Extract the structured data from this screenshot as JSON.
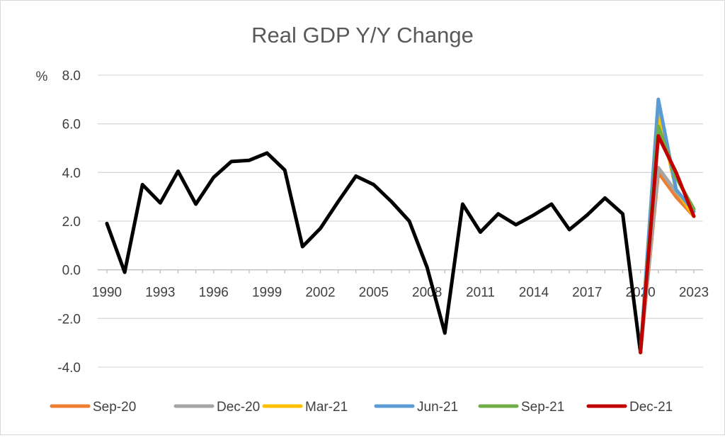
{
  "chart_data": {
    "type": "line",
    "title": "Real GDP Y/Y Change",
    "ylabel": "%",
    "xlabel": "",
    "ylim": [
      -4,
      8
    ],
    "yticks": [
      "-4.0",
      "-2.0",
      "0.0",
      "2.0",
      "4.0",
      "6.0",
      "8.0"
    ],
    "xlim": [
      1990,
      2023
    ],
    "xticks": [
      "1990",
      "1993",
      "1996",
      "1999",
      "2002",
      "2005",
      "2008",
      "2011",
      "2014",
      "2017",
      "2020",
      "2023"
    ],
    "grid": "horizontal",
    "legend_position": "bottom",
    "history": {
      "color": "#000000",
      "x": [
        1990,
        1991,
        1992,
        1993,
        1994,
        1995,
        1996,
        1997,
        1998,
        1999,
        2000,
        2001,
        2002,
        2003,
        2004,
        2005,
        2006,
        2007,
        2008,
        2009,
        2010,
        2011,
        2012,
        2013,
        2014,
        2015,
        2016,
        2017,
        2018,
        2019,
        2020
      ],
      "values": [
        1.9,
        -0.1,
        3.5,
        2.75,
        4.05,
        2.7,
        3.8,
        4.45,
        4.5,
        4.8,
        4.1,
        0.95,
        1.7,
        2.8,
        3.85,
        3.5,
        2.8,
        2.0,
        0.1,
        -2.6,
        2.7,
        1.55,
        2.3,
        1.85,
        2.25,
        2.7,
        1.65,
        2.25,
        2.95,
        2.3,
        -3.4
      ]
    },
    "series": [
      {
        "name": "Sep-20",
        "color": "#ed7d31",
        "x": [
          2020,
          2021,
          2022,
          2023
        ],
        "values": [
          -3.4,
          4.0,
          3.0,
          2.2
        ]
      },
      {
        "name": "Dec-20",
        "color": "#a5a5a5",
        "x": [
          2020,
          2021,
          2022,
          2023
        ],
        "values": [
          -3.4,
          4.2,
          3.2,
          2.4
        ]
      },
      {
        "name": "Mar-21",
        "color": "#ffc000",
        "x": [
          2020,
          2021,
          2022,
          2023
        ],
        "values": [
          -3.4,
          6.5,
          3.3,
          2.2
        ]
      },
      {
        "name": "Jun-21",
        "color": "#5b9bd5",
        "x": [
          2020,
          2021,
          2022,
          2023
        ],
        "values": [
          -3.4,
          7.0,
          3.3,
          2.4
        ]
      },
      {
        "name": "Sep-21",
        "color": "#70ad47",
        "x": [
          2020,
          2021,
          2022,
          2023
        ],
        "values": [
          -3.4,
          5.9,
          3.8,
          2.5
        ]
      },
      {
        "name": "Dec-21",
        "color": "#c00000",
        "x": [
          2020,
          2021,
          2022,
          2023
        ],
        "values": [
          -3.4,
          5.5,
          4.0,
          2.2
        ]
      }
    ]
  }
}
